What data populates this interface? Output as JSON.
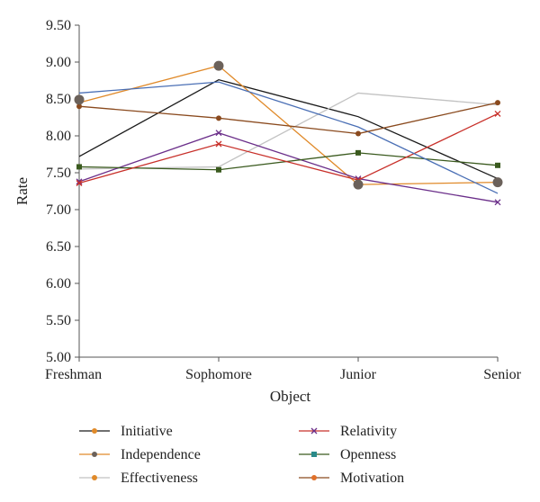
{
  "chart_data": {
    "type": "line",
    "title": "",
    "xlabel": "Object",
    "ylabel": "Rate",
    "categories": [
      "Freshman",
      "Sophomore",
      "Junior",
      "Senior"
    ],
    "ylim": [
      5.0,
      9.5
    ],
    "yticks": [
      "5.00",
      "5.50",
      "6.00",
      "6.50",
      "7.00",
      "7.50",
      "8.00",
      "8.50",
      "9.00",
      "9.50"
    ],
    "grid": false,
    "legend_position": "bottom",
    "series": [
      {
        "name": "Initiative",
        "values": [
          7.72,
          8.76,
          8.26,
          7.42
        ],
        "color": "#1a1a1a",
        "marker": "none"
      },
      {
        "name": "Independence",
        "values": [
          8.45,
          8.95,
          7.34,
          7.37
        ],
        "color": "#e08a2a",
        "marker": "none"
      },
      {
        "name": "Effectiveness",
        "values": [
          7.55,
          7.58,
          8.58,
          8.42
        ],
        "color": "#c2c2c2",
        "marker": "none"
      },
      {
        "name": "Relativity",
        "values": [
          7.38,
          8.04,
          7.42,
          7.1
        ],
        "color": "#6b2f8a",
        "marker": "x"
      },
      {
        "name": "Openness",
        "values": [
          7.58,
          7.54,
          7.77,
          7.6
        ],
        "color": "#3a5a1e",
        "marker": "square"
      },
      {
        "name": "Motivation",
        "values": [
          7.36,
          7.89,
          7.4,
          8.3
        ],
        "color": "#c8302a",
        "marker": "x"
      },
      {
        "name": "",
        "values": [
          8.58,
          8.73,
          8.12,
          7.22
        ],
        "color": "#4a6fb5",
        "marker": "none"
      },
      {
        "name": "",
        "values": [
          8.4,
          8.24,
          8.03,
          8.45
        ],
        "color": "#8a4a1e",
        "marker": "dot"
      },
      {
        "name": "",
        "values": [
          8.49,
          8.95,
          7.34,
          7.37
        ],
        "color": "#6b615a",
        "marker": "big-dot",
        "hide_line": true
      }
    ],
    "legend": [
      {
        "label": "Initiative",
        "line_color": "#1a1a1a",
        "marker": "dot",
        "marker_color": "#e08a2a"
      },
      {
        "label": "Independence",
        "line_color": "#e08a2a",
        "marker": "dot",
        "marker_color": "#6b615a"
      },
      {
        "label": "Effectiveness",
        "line_color": "#c2c2c2",
        "marker": "dot",
        "marker_color": "#e08a2a"
      },
      {
        "label": "Relativity",
        "line_color": "#c8302a",
        "marker": "x",
        "marker_color": "#6b2f8a"
      },
      {
        "label": "Openness",
        "line_color": "#3a5a1e",
        "marker": "square",
        "marker_color": "#2a8a8a"
      },
      {
        "label": "Motivation",
        "line_color": "#8a4a1e",
        "marker": "dot",
        "marker_color": "#e0702a"
      }
    ]
  }
}
